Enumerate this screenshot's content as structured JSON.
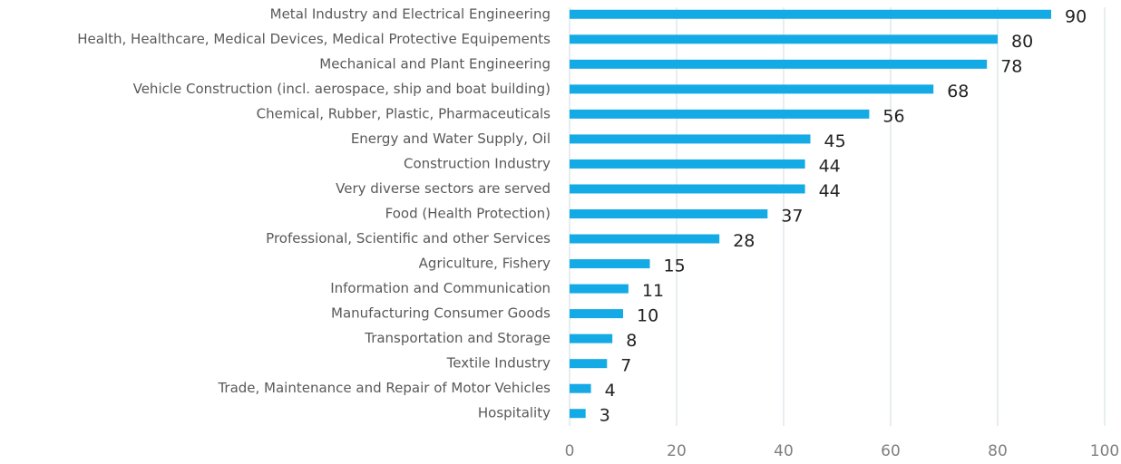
{
  "chart_data": {
    "type": "bar",
    "orientation": "horizontal",
    "categories": [
      "Metal Industry and Electrical Engineering",
      "Health, Healthcare, Medical Devices, Medical Protective Equipements",
      "Mechanical and Plant Engineering",
      "Vehicle Construction (incl. aerospace, ship and boat building)",
      "Chemical, Rubber, Plastic, Pharmaceuticals",
      "Energy and Water Supply, Oil",
      "Construction Industry",
      "Very diverse sectors are served",
      "Food (Health Protection)",
      "Professional, Scientific and other Services",
      "Agriculture, Fishery",
      "Information and Communication",
      "Manufacturing Consumer Goods",
      "Transportation and Storage",
      "Textile Industry",
      "Trade, Maintenance and Repair of Motor Vehicles",
      "Hospitality"
    ],
    "values": [
      90,
      80,
      78,
      68,
      56,
      45,
      44,
      44,
      37,
      28,
      15,
      11,
      10,
      8,
      7,
      4,
      3
    ],
    "color": "#14aae6",
    "xlim": [
      0,
      100
    ],
    "xticks": [
      0,
      20,
      40,
      60,
      80,
      100
    ],
    "grid": true
  }
}
